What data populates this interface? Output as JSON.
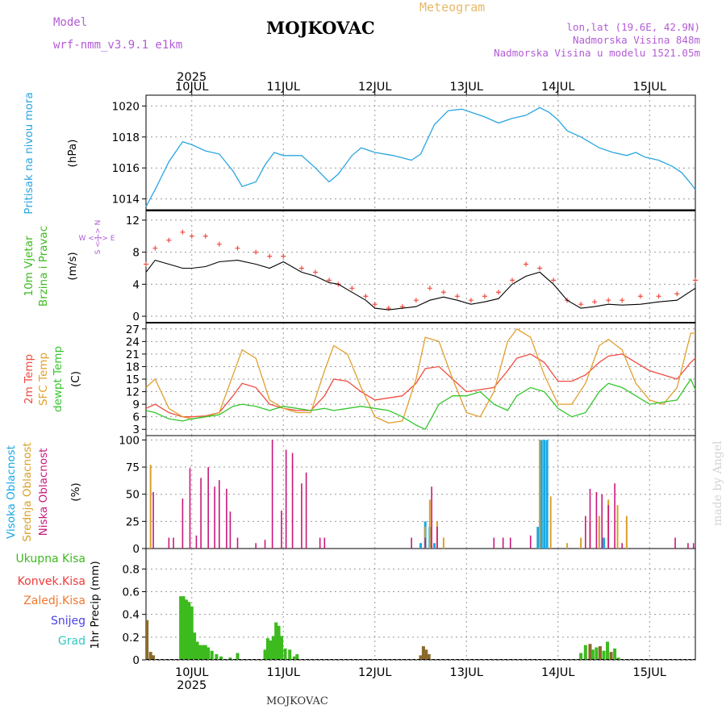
{
  "header": {
    "model_label": "Model",
    "model_name": "wrf-nmm_v3.9.1 e1km",
    "title": "MOJKOVAC",
    "meteogram_label": "Meteogram",
    "coords": "lon,lat (19.6E, 42.9N)",
    "elevation": "Nadmorska Visina 848m",
    "model_elevation": "Nadmorska Visina u modelu 1521.05m",
    "credit": "made by Angel",
    "footer_label": "MOJKOVAC"
  },
  "colors": {
    "header_purple": "#b35cd6",
    "meteogram_orange": "#e8b868",
    "credit_gray": "#cfd6cf",
    "pressure": "#2aa5e0",
    "t2m": "#f04c40",
    "sfc": "#e0a030",
    "dewpt": "#34c62c",
    "cloud_high": "#18a8e6",
    "cloud_mid": "#d8a028",
    "cloud_low": "#c8187c",
    "precip_total": "#3cba1e",
    "precip_total_mixed": "#8a6a2c",
    "precip_conv": "#f03a3a",
    "precip_frozen": "#f07830",
    "precip_snow": "#4a42e8",
    "precip_grad": "#30c8c0",
    "wind_speed_line": "#000000",
    "wind_gust_marks": "#f04c40"
  },
  "chart_data": [
    {
      "type": "line",
      "panel": "pressure",
      "ylabel": "Pritisak na nivou mora",
      "unit": "(hPa)",
      "ylim": [
        1013.3,
        1020.7
      ],
      "yticks": [
        1014,
        1016,
        1018,
        1020
      ],
      "x_days": [
        9.5,
        9.6,
        9.75,
        9.9,
        10.0,
        10.15,
        10.3,
        10.45,
        10.55,
        10.7,
        10.8,
        10.9,
        11.0,
        11.2,
        11.35,
        11.5,
        11.6,
        11.75,
        11.85,
        12.0,
        12.2,
        12.4,
        12.5,
        12.65,
        12.8,
        12.95,
        13.05,
        13.2,
        13.35,
        13.5,
        13.65,
        13.8,
        13.9,
        14.0,
        14.1,
        14.25,
        14.45,
        14.6,
        14.75,
        14.85,
        14.95,
        15.1,
        15.25,
        15.35,
        15.45,
        15.5
      ],
      "series": [
        {
          "values": [
            1013.5,
            1014.6,
            1016.4,
            1017.7,
            1017.5,
            1017.1,
            1016.9,
            1015.8,
            1014.8,
            1015.1,
            1016.2,
            1017.0,
            1016.8,
            1016.8,
            1016.0,
            1015.1,
            1015.6,
            1016.8,
            1017.3,
            1017.0,
            1016.8,
            1016.5,
            1016.9,
            1018.8,
            1019.7,
            1019.8,
            1019.6,
            1019.3,
            1018.9,
            1019.2,
            1019.4,
            1019.9,
            1019.6,
            1019.1,
            1018.4,
            1018.0,
            1017.3,
            1017.0,
            1016.8,
            1017.0,
            1016.7,
            1016.5,
            1016.1,
            1015.7,
            1015.0,
            1014.6
          ]
        }
      ]
    },
    {
      "type": "line",
      "panel": "wind",
      "ylabel": "10m Vjetar Brzina i Pravac",
      "unit": "(m/s)",
      "compass": {
        "n": "N",
        "s": "S",
        "w": "W",
        "e": "E"
      },
      "ylim": [
        -0.8,
        13.2
      ],
      "yticks": [
        0,
        4,
        8,
        12
      ],
      "x_days": [
        9.5,
        9.6,
        9.75,
        9.9,
        10.0,
        10.15,
        10.3,
        10.5,
        10.7,
        10.85,
        11.0,
        11.2,
        11.35,
        11.5,
        11.6,
        11.75,
        11.9,
        12.0,
        12.15,
        12.3,
        12.45,
        12.6,
        12.75,
        12.9,
        13.05,
        13.2,
        13.35,
        13.5,
        13.65,
        13.8,
        13.95,
        14.1,
        14.25,
        14.4,
        14.55,
        14.7,
        14.9,
        15.1,
        15.3,
        15.5
      ],
      "series": [
        {
          "name": "speed",
          "values": [
            5.5,
            7.0,
            6.5,
            6.0,
            6.0,
            6.2,
            6.8,
            7.0,
            6.5,
            6.0,
            6.8,
            5.5,
            5.0,
            4.2,
            4.0,
            3.0,
            2.0,
            1.0,
            0.8,
            1.0,
            1.2,
            2.0,
            2.4,
            2.0,
            1.5,
            1.8,
            2.2,
            4.0,
            5.0,
            5.5,
            4.0,
            2.0,
            1.0,
            1.2,
            1.5,
            1.4,
            1.5,
            1.8,
            2.0,
            3.5
          ]
        },
        {
          "name": "gust",
          "values": [
            6.5,
            8.5,
            9.5,
            10.5,
            10.0,
            10.0,
            9.0,
            8.5,
            8.0,
            7.5,
            7.5,
            6.0,
            5.5,
            4.5,
            4.0,
            3.5,
            2.5,
            1.5,
            1.0,
            1.2,
            2.0,
            3.5,
            3.0,
            2.5,
            2.0,
            2.5,
            3.0,
            4.5,
            6.5,
            6.0,
            4.5,
            2.0,
            1.5,
            1.8,
            2.0,
            2.0,
            2.5,
            2.5,
            2.8,
            4.5
          ]
        }
      ]
    },
    {
      "type": "line",
      "panel": "temperature",
      "ylabel": "2m Temp SFC Temp dewpt Temp",
      "unit": "(C)",
      "ylim": [
        1.5,
        28.5
      ],
      "yticks": [
        3,
        6,
        9,
        12,
        15,
        18,
        21,
        24,
        27
      ],
      "x_days": [
        9.5,
        9.6,
        9.75,
        9.9,
        10.0,
        10.15,
        10.3,
        10.45,
        10.55,
        10.7,
        10.85,
        11.0,
        11.15,
        11.3,
        11.45,
        11.55,
        11.7,
        11.85,
        12.0,
        12.15,
        12.3,
        12.45,
        12.55,
        12.7,
        12.85,
        13.0,
        13.15,
        13.3,
        13.45,
        13.55,
        13.7,
        13.85,
        14.0,
        14.15,
        14.3,
        14.45,
        14.55,
        14.7,
        14.85,
        15.0,
        15.15,
        15.3,
        15.45,
        15.5
      ],
      "series": [
        {
          "name": "2m Temp",
          "values": [
            8,
            9,
            7,
            6,
            6,
            6.2,
            7,
            11,
            14,
            13,
            9,
            8,
            7.5,
            7.5,
            11,
            15,
            14.5,
            12,
            10,
            10.5,
            11,
            14,
            17.5,
            18,
            15,
            12,
            12.5,
            13,
            17,
            20,
            21,
            19,
            14.5,
            14.5,
            16,
            19,
            20.5,
            21,
            19,
            17,
            16,
            15,
            19,
            20
          ]
        },
        {
          "name": "SFC Temp",
          "values": [
            13,
            15,
            8,
            6,
            5.5,
            6,
            7,
            16,
            22,
            20,
            10,
            8,
            7,
            7,
            17,
            23,
            21,
            13,
            6,
            4.5,
            5,
            15,
            25,
            24,
            15,
            7,
            6,
            12,
            24,
            27,
            25,
            16,
            9,
            9,
            14,
            23,
            24.5,
            22,
            14,
            10,
            9,
            13,
            26,
            26
          ]
        },
        {
          "name": "dewpt Temp",
          "values": [
            7.5,
            7,
            5.5,
            5,
            5.5,
            6,
            6.5,
            8.5,
            9,
            8.5,
            7.5,
            8.5,
            8,
            7.5,
            8,
            7.5,
            8,
            8.5,
            8,
            7.5,
            6,
            4,
            3,
            9,
            11,
            11,
            12,
            9,
            7.5,
            11,
            13,
            12,
            8,
            6,
            7,
            12,
            14,
            13,
            11,
            9,
            9.5,
            10,
            15,
            12.5
          ]
        }
      ]
    },
    {
      "type": "bar",
      "panel": "clouds",
      "ylabel": "Visoka Oblacnost Srednja Oblacnost Niska Oblacnost",
      "unit": "(%)",
      "ylim": [
        0,
        104
      ],
      "yticks": [
        0,
        25,
        50,
        75,
        100
      ],
      "series": [
        {
          "name": "Visoka Oblacnost",
          "x_days": [
            12.5,
            12.55,
            12.6,
            12.65,
            13.78,
            13.82,
            13.85,
            13.88,
            14.5
          ],
          "values": [
            5,
            25,
            20,
            5,
            20,
            100,
            100,
            100,
            10
          ]
        },
        {
          "name": "Srednja Oblacnost",
          "x_days": [
            9.55,
            12.55,
            12.6,
            12.68,
            12.75,
            13.8,
            13.92,
            14.1,
            14.25,
            14.35,
            14.45,
            14.55,
            14.65,
            14.75
          ],
          "values": [
            77,
            20,
            45,
            25,
            10,
            100,
            48,
            5,
            10,
            25,
            30,
            45,
            40,
            30
          ]
        },
        {
          "name": "Niska Oblacnost",
          "x_days": [
            9.58,
            9.75,
            9.8,
            9.9,
            9.98,
            10.05,
            10.1,
            10.18,
            10.25,
            10.3,
            10.38,
            10.42,
            10.5,
            10.7,
            10.8,
            10.88,
            10.98,
            11.03,
            11.1,
            11.2,
            11.25,
            11.4,
            11.45,
            12.4,
            12.55,
            12.62,
            12.68,
            13.3,
            13.4,
            13.48,
            13.7,
            14.3,
            14.35,
            14.42,
            14.48,
            14.55,
            14.62,
            14.7,
            15.28,
            15.42,
            15.48
          ],
          "values": [
            52,
            10,
            10,
            46,
            74,
            12,
            65,
            75,
            57,
            63,
            55,
            34,
            10,
            5,
            8,
            100,
            35,
            91,
            88,
            60,
            70,
            10,
            10,
            10,
            10,
            57,
            20,
            10,
            10,
            10,
            12,
            30,
            55,
            52,
            50,
            40,
            60,
            5,
            10,
            5,
            5
          ]
        }
      ]
    },
    {
      "type": "bar",
      "panel": "precip",
      "ylabel": "1hr Precip (mm)",
      "ylim": [
        0,
        0.98
      ],
      "yticks": [
        0,
        0.2,
        0.4,
        0.6,
        0.8
      ],
      "legend": [
        "Ukupna Kisa",
        "Konvek.Kisa",
        "Zaledj.Kisa",
        "Snijeg",
        "Grad"
      ],
      "series": [
        {
          "name": "Ukupna Kisa",
          "x_days": [
            9.51,
            9.55,
            9.58,
            9.88,
            9.91,
            9.94,
            9.97,
            10.0,
            10.03,
            10.06,
            10.09,
            10.12,
            10.15,
            10.18,
            10.22,
            10.27,
            10.32,
            10.42,
            10.5,
            10.8,
            10.83,
            10.86,
            10.89,
            10.92,
            10.95,
            10.98,
            11.02,
            11.07,
            11.12,
            11.15,
            12.5,
            12.53,
            12.56,
            12.59,
            14.25,
            14.3,
            14.35,
            14.38,
            14.42,
            14.46,
            14.5,
            14.54,
            14.58,
            14.62,
            14.66
          ],
          "values": [
            0.35,
            0.07,
            0.04,
            0.56,
            0.56,
            0.53,
            0.51,
            0.47,
            0.24,
            0.16,
            0.13,
            0.13,
            0.13,
            0.11,
            0.08,
            0.05,
            0.03,
            0.02,
            0.06,
            0.09,
            0.19,
            0.17,
            0.21,
            0.33,
            0.3,
            0.21,
            0.1,
            0.09,
            0.03,
            0.05,
            0.04,
            0.12,
            0.09,
            0.05,
            0.06,
            0.13,
            0.14,
            0.09,
            0.11,
            0.12,
            0.08,
            0.16,
            0.07,
            0.1,
            0.02
          ]
        }
      ]
    }
  ],
  "x_axis": {
    "day_labels": [
      "10JUL",
      "11JUL",
      "12JUL",
      "13JUL",
      "14JUL",
      "15JUL"
    ],
    "year_label": "2025"
  }
}
